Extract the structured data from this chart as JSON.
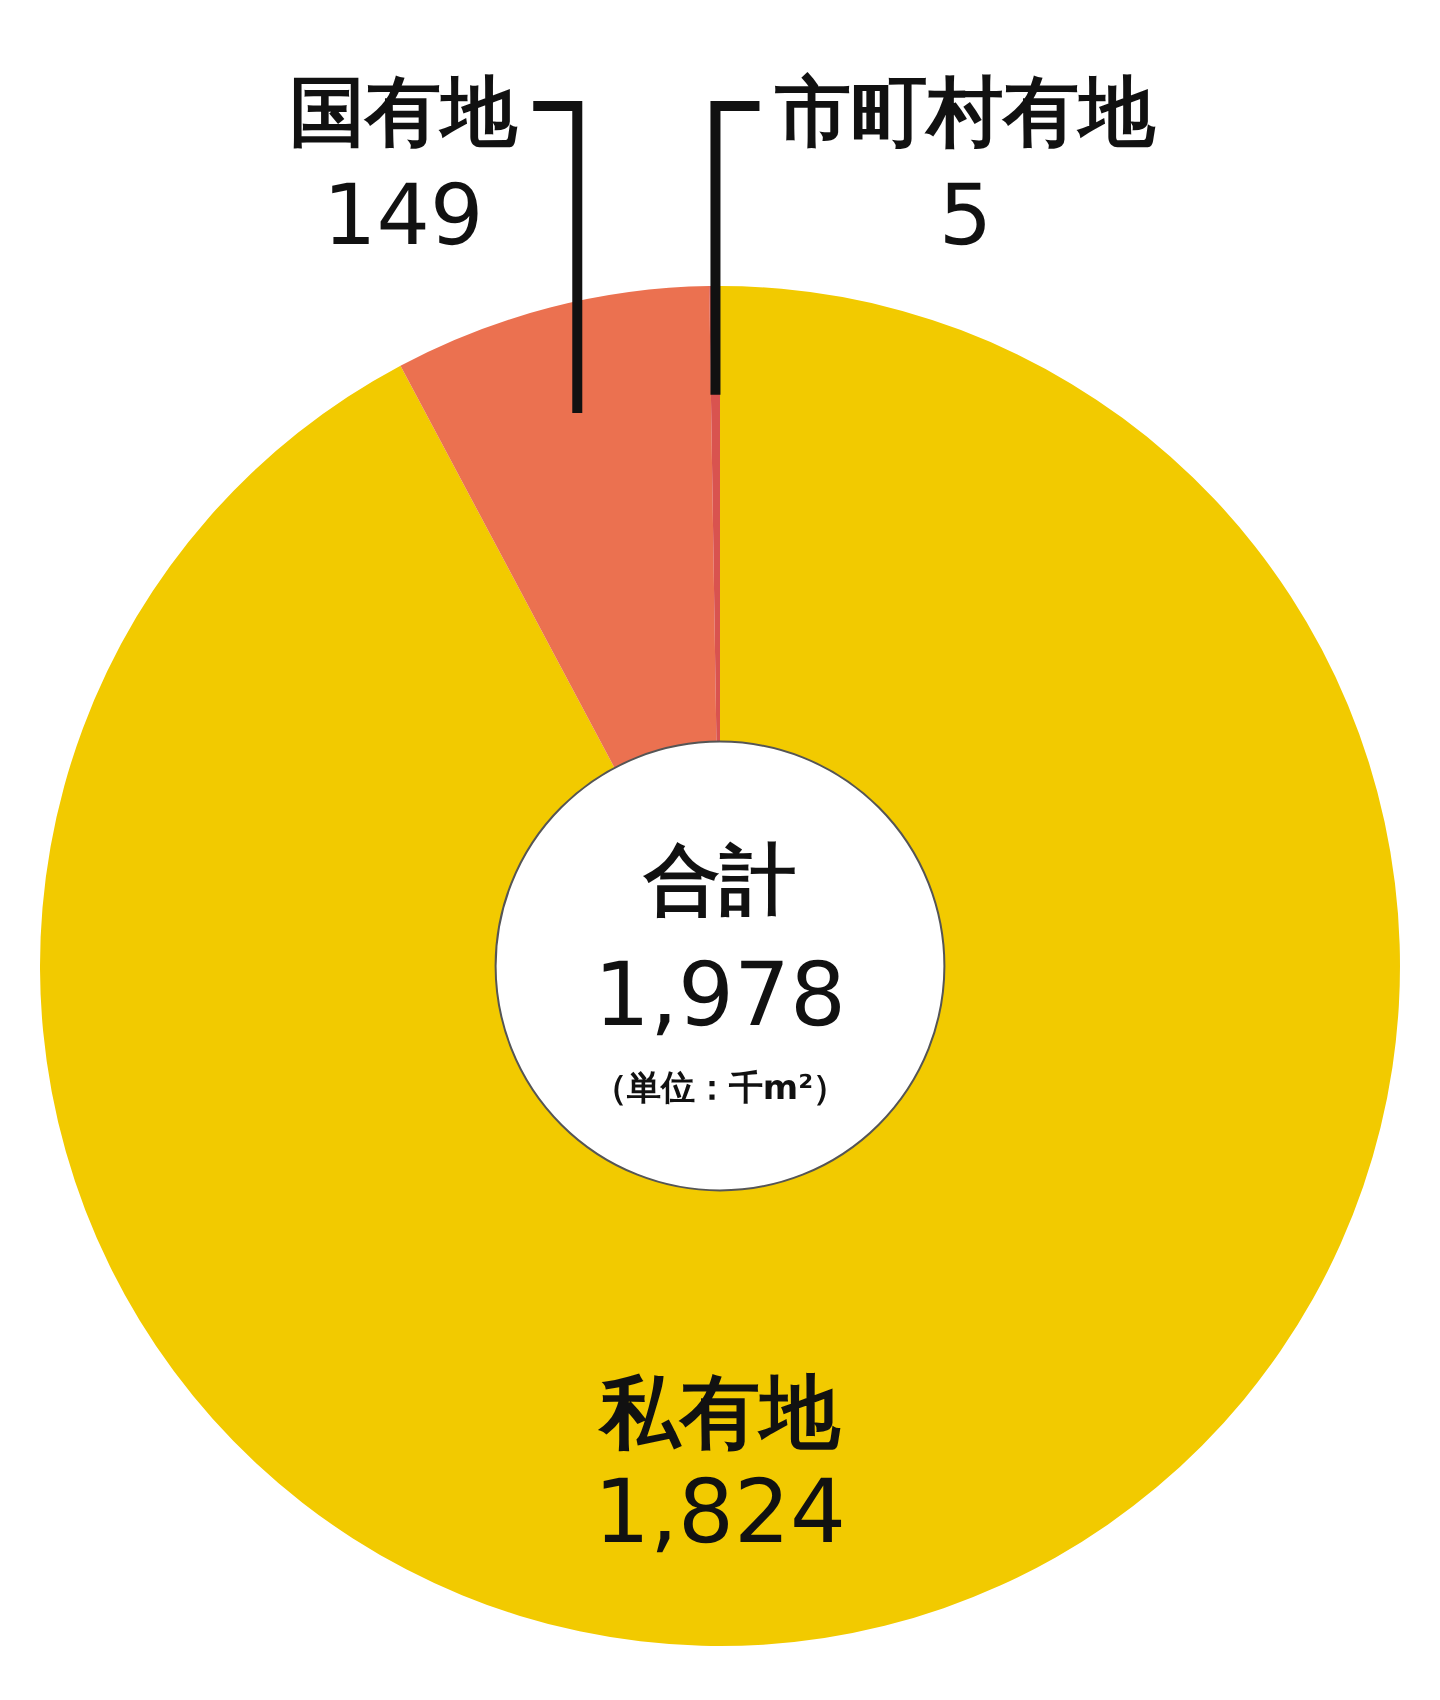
{
  "chart_data": {
    "type": "donut",
    "categories": [
      "私有地",
      "国有地",
      "市町村有地"
    ],
    "values": [
      1824,
      149,
      5
    ],
    "colors": [
      "#f2ca00",
      "#eb7150",
      "#d9534f"
    ],
    "value_labels": [
      "1,824",
      "149",
      "5"
    ],
    "legend": false,
    "annotations": [
      "合計",
      "1,978",
      "（単位：千m²）"
    ]
  }
}
